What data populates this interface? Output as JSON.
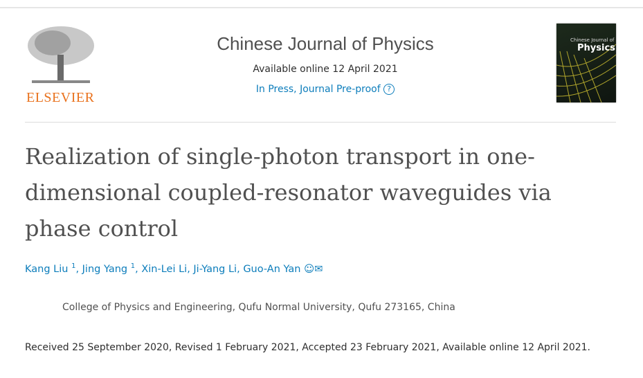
{
  "publisher": {
    "logo_text": "ELSEVIER"
  },
  "journal": {
    "title": "Chinese Journal of Physics",
    "available": "Available online 12 April 2021",
    "status": "In Press, Journal Pre-proof",
    "help_icon": "question-circle-icon",
    "cover_title": "Chinese Journal of",
    "cover_word": "Physics"
  },
  "article": {
    "title": "Realization of single-photon transport in one-dimensional coupled-resonator waveguides via phase control",
    "authors": [
      {
        "name": "Kang Liu",
        "sup": "1"
      },
      {
        "name": "Jing Yang",
        "sup": "1"
      },
      {
        "name": "Xin-Lei Li"
      },
      {
        "name": "Ji-Yang Li"
      },
      {
        "name": "Guo-An Yan"
      }
    ],
    "affiliation": "College of Physics and Engineering, Qufu Normal University, Qufu 273165, China",
    "dates": "Received 25 September 2020, Revised 1 February 2021, Accepted 23 February 2021, Available online 12 April 2021."
  },
  "colors": {
    "link": "#0c7dbb",
    "elsevier": "#e9711c"
  }
}
